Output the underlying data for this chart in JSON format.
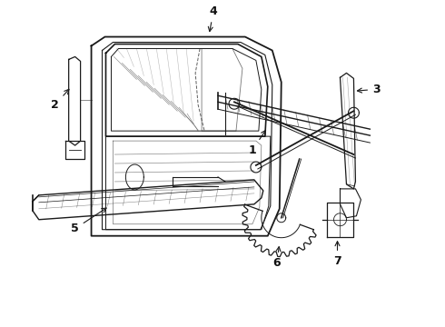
{
  "background_color": "#ffffff",
  "line_color": "#1a1a1a",
  "label_color": "#111111",
  "figsize": [
    4.9,
    3.6
  ],
  "dpi": 100
}
